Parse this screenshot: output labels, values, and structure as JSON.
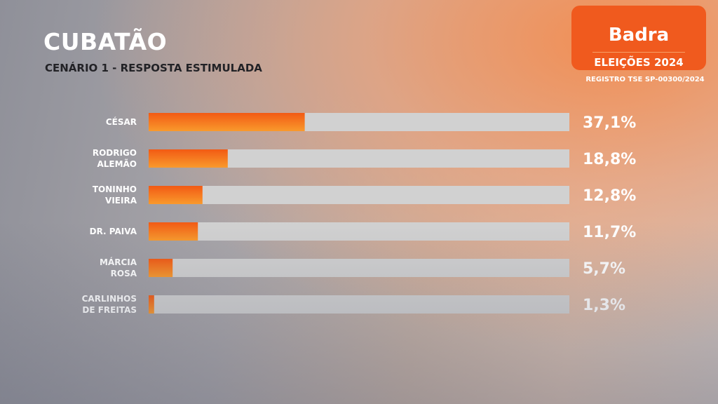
{
  "header": {
    "title": "CUBATÃO",
    "subtitle": "CENÁRIO 1 - RESPOSTA ESTIMULADA"
  },
  "badge": {
    "brand": "Badra",
    "event": "ELEIÇÕES 2024",
    "registro": "REGISTRO TSE SP-00300/2024"
  },
  "colors": {
    "accent": "#f05a1e",
    "bar_fill_top": "#f25a14",
    "bar_fill_bottom": "#f99a2c",
    "bar_track": "#d1d1d1"
  },
  "chart_data": {
    "type": "bar",
    "orientation": "horizontal",
    "categories": [
      [
        "CÉSAR"
      ],
      [
        "RODRIGO",
        "ALEMÃO"
      ],
      [
        "TONINHO",
        "VIEIRA"
      ],
      [
        "DR. PAIVA"
      ],
      [
        "MÁRCIA",
        "ROSA"
      ],
      [
        "CARLINHOS",
        "DE FREITAS"
      ]
    ],
    "values": [
      37.1,
      18.8,
      12.8,
      11.7,
      5.7,
      1.3
    ],
    "value_labels": [
      "37,1%",
      "18,8%",
      "12,8%",
      "11,7%",
      "5,7%",
      "1,3%"
    ],
    "xlim": [
      0,
      100
    ],
    "unit": "%",
    "grid": false,
    "legend": "none"
  }
}
